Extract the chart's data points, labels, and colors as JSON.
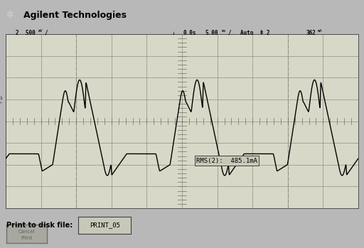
{
  "bg_color": "#b8b8b8",
  "screen_bg": "#d8d8c8",
  "grid_color": "#909080",
  "waveform_color": "#000000",
  "title_text": "Agilent Technologies",
  "rms_label": "RMS(2):  485.1mA",
  "bottom_label": "Print to disk file:",
  "bottom_filename": "PRINT_05",
  "n_hdiv": 10,
  "n_vdiv": 8,
  "xlim": [
    0,
    10
  ],
  "ylim": [
    -4,
    4
  ],
  "period": 3.33,
  "font_size_title": 9,
  "font_size_header": 6,
  "font_size_rms": 6.5
}
